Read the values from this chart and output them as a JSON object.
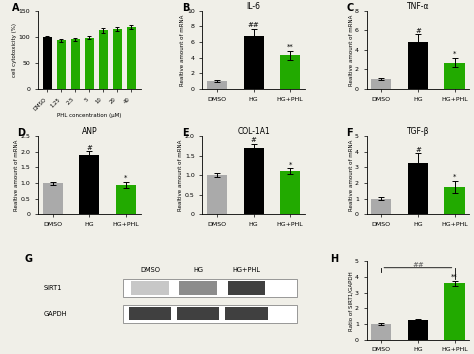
{
  "panelA": {
    "label": "A",
    "categories": [
      "DMSO",
      "1.25",
      "2.5",
      "5",
      "10",
      "20",
      "40"
    ],
    "values": [
      100,
      93,
      95,
      98,
      112,
      115,
      118
    ],
    "errors": [
      2,
      3,
      3,
      3,
      4,
      4,
      4
    ],
    "colors": [
      "#000000",
      "#22aa00",
      "#22aa00",
      "#22aa00",
      "#22aa00",
      "#22aa00",
      "#22aa00"
    ],
    "ylabel": "cell cytotoxicity (%)",
    "xlabel": "PHL concentration (μM)",
    "ylim": [
      0,
      150
    ],
    "yticks": [
      0,
      50,
      100,
      150
    ]
  },
  "panelB": {
    "label": "B",
    "title": "IL-6",
    "categories": [
      "DMSO",
      "HG",
      "HG+PHL"
    ],
    "values": [
      1.0,
      6.8,
      4.3
    ],
    "errors": [
      0.1,
      0.9,
      0.6
    ],
    "colors": [
      "#aaaaaa",
      "#000000",
      "#22aa00"
    ],
    "ylabel": "Realtive amount of mRNA",
    "ylim": [
      0,
      10
    ],
    "yticks": [
      0,
      2,
      4,
      6,
      8,
      10
    ],
    "annotations_hg": "##",
    "annotations_phl": "**"
  },
  "panelC": {
    "label": "C",
    "title": "TNF-α",
    "categories": [
      "DMSO",
      "HG",
      "HG+PHL"
    ],
    "values": [
      1.0,
      4.8,
      2.7
    ],
    "errors": [
      0.1,
      0.8,
      0.5
    ],
    "colors": [
      "#aaaaaa",
      "#000000",
      "#22aa00"
    ],
    "ylabel": "Realtive amount of mRNA",
    "ylim": [
      0,
      8
    ],
    "yticks": [
      0,
      2,
      4,
      6,
      8
    ],
    "annotations_hg": "#",
    "annotations_phl": "*"
  },
  "panelD": {
    "label": "D",
    "title": "ANP",
    "categories": [
      "DMSO",
      "HG",
      "HG+PHL"
    ],
    "values": [
      1.0,
      1.9,
      0.95
    ],
    "errors": [
      0.05,
      0.12,
      0.1
    ],
    "colors": [
      "#aaaaaa",
      "#000000",
      "#22aa00"
    ],
    "ylabel": "Realtive amount of mRNA",
    "ylim": [
      0,
      2.5
    ],
    "yticks": [
      0,
      0.5,
      1.0,
      1.5,
      2.0,
      2.5
    ],
    "annotations_hg": "#",
    "annotations_phl": "*"
  },
  "panelE": {
    "label": "E",
    "title": "COL-1A1",
    "categories": [
      "DMSO",
      "HG",
      "HG+PHL"
    ],
    "values": [
      1.0,
      1.7,
      1.1
    ],
    "errors": [
      0.05,
      0.1,
      0.08
    ],
    "colors": [
      "#aaaaaa",
      "#000000",
      "#22aa00"
    ],
    "ylabel": "Realtive amount of mRNA",
    "ylim": [
      0,
      2.0
    ],
    "yticks": [
      0,
      0.5,
      1.0,
      1.5,
      2.0
    ],
    "annotations_hg": "#",
    "annotations_phl": "*"
  },
  "panelF": {
    "label": "F",
    "title": "TGF-β",
    "categories": [
      "DMSO",
      "HG",
      "HG+PHL"
    ],
    "values": [
      1.0,
      3.3,
      1.75
    ],
    "errors": [
      0.1,
      0.6,
      0.4
    ],
    "colors": [
      "#aaaaaa",
      "#000000",
      "#22aa00"
    ],
    "ylabel": "Realtive amount of mRNA",
    "ylim": [
      0,
      5
    ],
    "yticks": [
      0,
      1,
      2,
      3,
      4,
      5
    ],
    "annotations_hg": "#",
    "annotations_phl": "*"
  },
  "panelH": {
    "label": "H",
    "categories": [
      "DMSO",
      "HG",
      "HG+PHL"
    ],
    "values": [
      1.0,
      1.25,
      3.6
    ],
    "errors": [
      0.08,
      0.1,
      0.18
    ],
    "colors": [
      "#aaaaaa",
      "#000000",
      "#22aa00"
    ],
    "ylabel": "Ratio of SIRT1/GAPDH",
    "ylim": [
      0,
      5
    ],
    "yticks": [
      0,
      1,
      2,
      3,
      4,
      5
    ],
    "annotations": "##",
    "annotations_phl": "**"
  },
  "bg_color": "#f0efe8"
}
